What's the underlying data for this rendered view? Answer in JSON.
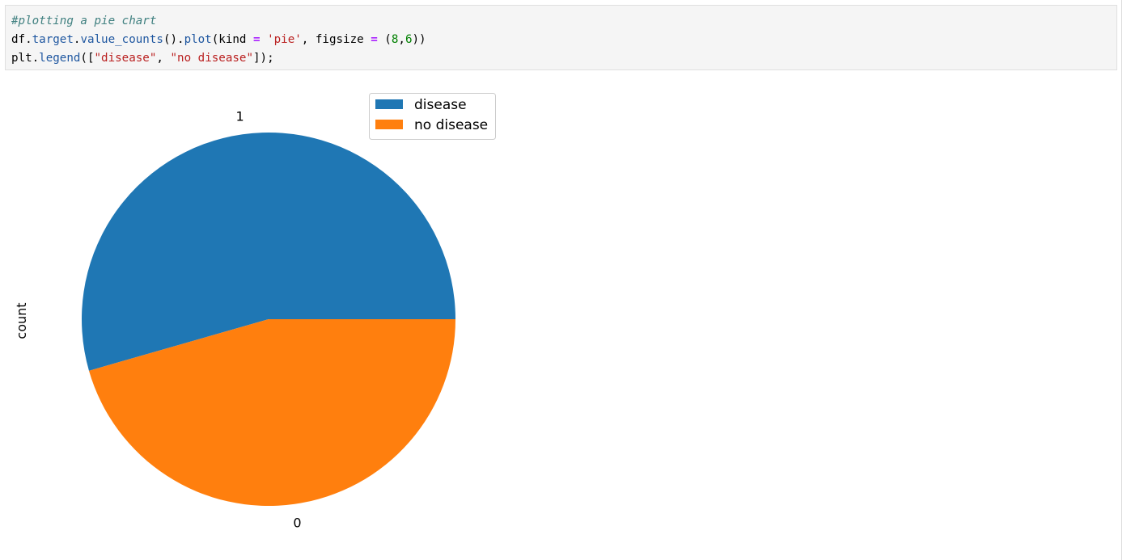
{
  "code_cell": {
    "lines": [
      [
        {
          "cls": "tok-comment",
          "text": "#plotting a pie chart"
        }
      ],
      [
        {
          "cls": "tok-name",
          "text": "df"
        },
        {
          "cls": "tok-punct",
          "text": "."
        },
        {
          "cls": "tok-attr",
          "text": "target"
        },
        {
          "cls": "tok-punct",
          "text": "."
        },
        {
          "cls": "tok-attr",
          "text": "value_counts"
        },
        {
          "cls": "tok-punct",
          "text": "()."
        },
        {
          "cls": "tok-attr",
          "text": "plot"
        },
        {
          "cls": "tok-punct",
          "text": "(kind "
        },
        {
          "cls": "tok-op",
          "text": "="
        },
        {
          "cls": "tok-punct",
          "text": " "
        },
        {
          "cls": "tok-str",
          "text": "'pie'"
        },
        {
          "cls": "tok-punct",
          "text": ", figsize "
        },
        {
          "cls": "tok-op",
          "text": "="
        },
        {
          "cls": "tok-punct",
          "text": " ("
        },
        {
          "cls": "tok-num",
          "text": "8"
        },
        {
          "cls": "tok-punct",
          "text": ","
        },
        {
          "cls": "tok-num",
          "text": "6"
        },
        {
          "cls": "tok-punct",
          "text": "))"
        }
      ],
      [
        {
          "cls": "tok-name",
          "text": "plt"
        },
        {
          "cls": "tok-punct",
          "text": "."
        },
        {
          "cls": "tok-attr",
          "text": "legend"
        },
        {
          "cls": "tok-punct",
          "text": "(["
        },
        {
          "cls": "tok-str",
          "text": "\"disease\""
        },
        {
          "cls": "tok-punct",
          "text": ", "
        },
        {
          "cls": "tok-str",
          "text": "\"no disease\""
        },
        {
          "cls": "tok-punct",
          "text": "]);"
        }
      ]
    ]
  },
  "chart_data": {
    "type": "pie",
    "categories": [
      "1",
      "0"
    ],
    "values": [
      165,
      138
    ],
    "ylabel": "count",
    "colors": [
      "#1f77b4",
      "#ff7f0e"
    ],
    "legend": {
      "entries": [
        "disease",
        "no disease"
      ],
      "placement": "top-right"
    }
  }
}
